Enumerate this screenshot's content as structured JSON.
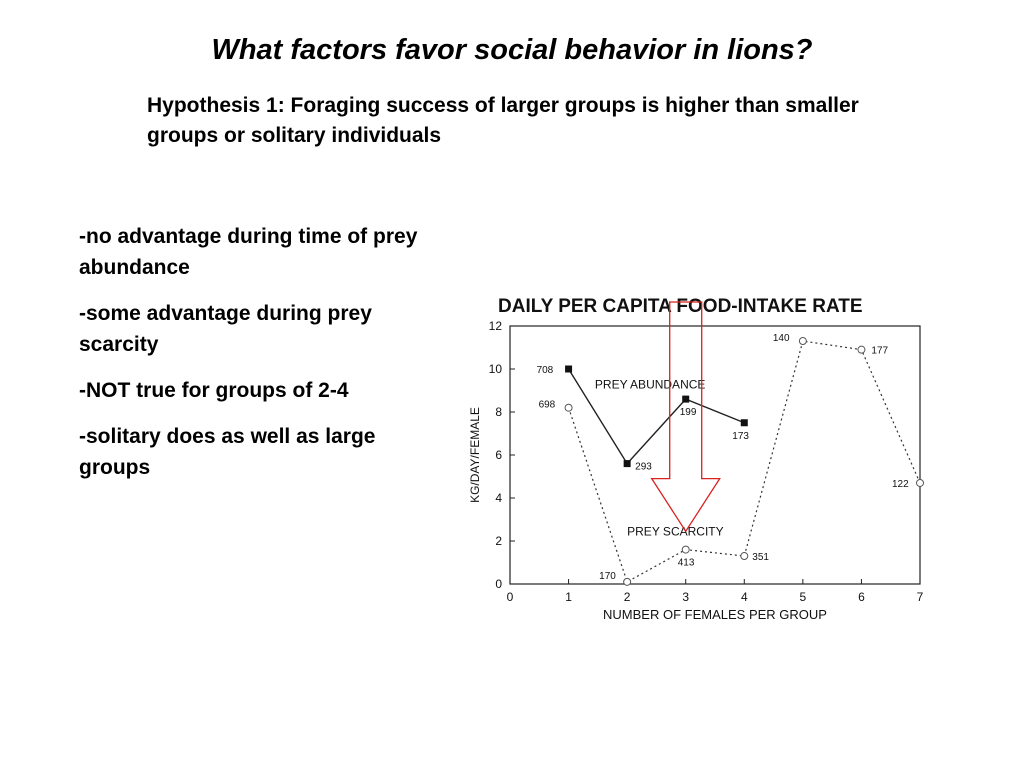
{
  "slide": {
    "title": "What factors favor social behavior in lions?",
    "hypothesis": "Hypothesis 1: Foraging success of larger groups is higher than smaller groups or solitary individuals",
    "bullets": [
      "-no advantage during time of prey abundance",
      "-some advantage during prey scarcity",
      "-NOT true for groups of 2-4",
      "-solitary does as well as large groups"
    ]
  },
  "chart_data": {
    "type": "line",
    "title": "DAILY PER CAPITA FOOD-INTAKE RATE",
    "xlabel": "NUMBER OF FEMALES PER GROUP",
    "ylabel": "KG/DAY/FEMALE",
    "xlim": [
      0,
      7
    ],
    "ylim": [
      0,
      12
    ],
    "xticks": [
      "0",
      "1",
      "2",
      "3",
      "4",
      "5",
      "6",
      "7"
    ],
    "yticks": [
      "0",
      "2",
      "4",
      "6",
      "8",
      "10",
      "12"
    ],
    "grid": false,
    "series": [
      {
        "name": "PREY ABUNDANCE",
        "marker": "filled-square",
        "line": "solid",
        "x": [
          1,
          2,
          3,
          4
        ],
        "y": [
          10,
          5.6,
          8.6,
          7.5
        ],
        "labels": [
          "708",
          "293",
          "199",
          "173"
        ]
      },
      {
        "name": "PREY SCARCITY",
        "marker": "open-circle",
        "line": "dotted",
        "x": [
          1,
          2,
          3,
          4,
          5,
          6,
          7
        ],
        "y": [
          8.2,
          0.1,
          1.6,
          1.3,
          11.3,
          10.9,
          4.7
        ],
        "labels": [
          "698",
          "170",
          "413",
          "351",
          "140",
          "177",
          "122"
        ]
      }
    ],
    "annotation": {
      "type": "down-arrow",
      "color": "#d8231f",
      "at_x": 3
    }
  }
}
